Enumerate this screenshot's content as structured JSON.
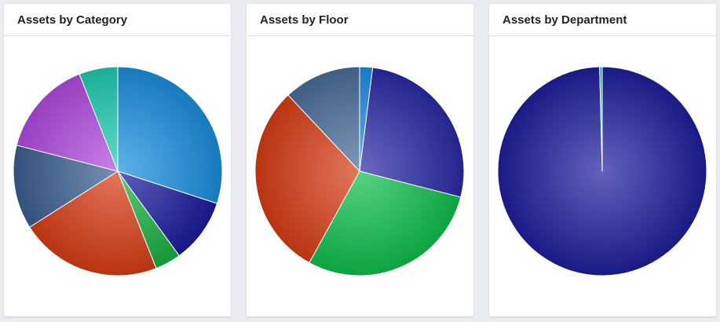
{
  "cards": [
    {
      "title": "Assets by Category",
      "chart_data": {
        "type": "pie",
        "title": "Assets by Category",
        "values": [
          30,
          10,
          4,
          22,
          13,
          15,
          6
        ],
        "colors": [
          "#1a8fe0",
          "#1a1a9e",
          "#19b040",
          "#d83d14",
          "#3b5f92",
          "#b04be0",
          "#20cdb0"
        ]
      }
    },
    {
      "title": "Assets by Floor",
      "chart_data": {
        "type": "pie",
        "title": "Assets by Floor",
        "values": [
          2,
          27,
          29,
          30,
          12
        ],
        "colors": [
          "#1f8de3",
          "#2a2aa6",
          "#0fc04d",
          "#d83d14",
          "#4a6d9b"
        ]
      }
    },
    {
      "title": "Assets by Department",
      "chart_data": {
        "type": "pie",
        "title": "Assets by Department",
        "values": [
          99.6,
          0.4
        ],
        "colors": [
          "#1f1f9e",
          "#20cdb0"
        ]
      }
    }
  ]
}
